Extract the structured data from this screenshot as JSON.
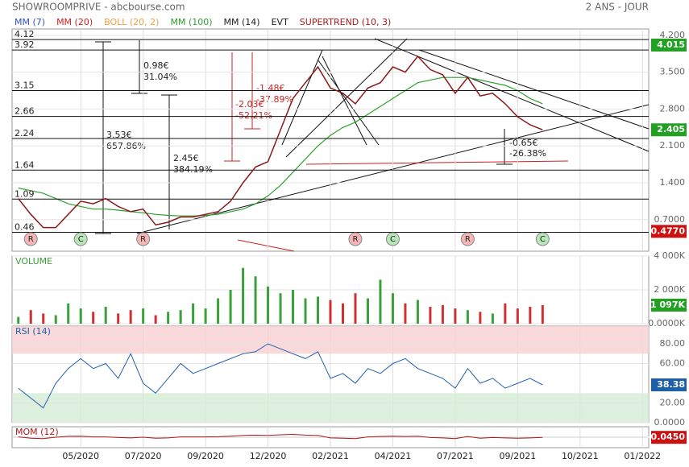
{
  "chart_data": [
    {
      "type": "line",
      "title": "SHOWROOMPRIVE - abcbourse.com",
      "subtitle": "2 ANS - JOUR",
      "indicators": [
        {
          "name": "MM (7)",
          "color": "#3050c8"
        },
        {
          "name": "MM (20)",
          "color": "#d02020"
        },
        {
          "name": "BOLL (20, 2)",
          "color": "#f0a040"
        },
        {
          "name": "MM (100)",
          "color": "#2ca02c",
          "values": [
            1.3,
            1.25,
            1.2,
            1.1,
            1.0,
            0.95,
            0.9,
            0.9,
            0.88,
            0.85,
            0.83,
            0.8,
            0.78,
            0.77,
            0.77,
            0.78,
            0.8,
            0.85,
            0.9,
            1.0,
            1.15,
            1.35,
            1.6,
            1.85,
            2.1,
            2.3,
            2.45,
            2.55,
            2.7,
            2.85,
            3.0,
            3.15,
            3.3,
            3.35,
            3.4,
            3.4,
            3.4,
            3.35,
            3.3,
            3.25,
            3.15,
            3.0,
            2.9,
            null,
            null,
            null,
            null,
            null,
            null,
            null,
            null
          ]
        },
        {
          "name": "MM (14)",
          "color": "#222222"
        },
        {
          "name": "EVT",
          "color": "#222222"
        },
        {
          "name": "SUPERTREND (10, 3)",
          "color": "#b01818"
        }
      ],
      "categories": [
        null,
        null,
        null,
        null,
        null,
        "05/2020",
        null,
        null,
        null,
        null,
        "07/2020",
        null,
        null,
        null,
        null,
        "09/2020",
        null,
        null,
        null,
        null,
        "12/2020",
        null,
        null,
        null,
        null,
        "02/2021",
        null,
        null,
        null,
        null,
        "04/2021",
        null,
        null,
        null,
        null,
        "07/2021",
        null,
        null,
        null,
        null,
        "09/2021",
        null,
        null,
        null,
        null,
        "10/2021",
        null,
        null,
        null,
        null,
        "01/2022"
      ],
      "values": [
        1.1,
        0.8,
        0.55,
        0.55,
        0.8,
        1.05,
        1.0,
        1.1,
        0.95,
        0.85,
        0.9,
        0.6,
        0.65,
        0.75,
        0.75,
        0.8,
        0.85,
        1.05,
        1.4,
        1.7,
        1.8,
        2.4,
        3.0,
        3.3,
        3.6,
        3.2,
        3.1,
        2.9,
        3.2,
        3.3,
        3.6,
        3.5,
        3.8,
        3.55,
        3.45,
        3.1,
        3.4,
        3.05,
        3.1,
        2.9,
        2.65,
        2.5,
        2.405,
        null,
        null,
        null,
        null,
        null,
        null,
        null,
        null
      ],
      "color": "#8b1a1a",
      "ylim": [
        0.1,
        4.32
      ],
      "yticks": [
        {
          "value": 4.2,
          "label": "4.200"
        },
        {
          "value": 3.5,
          "label": "3.500"
        },
        {
          "value": 2.8,
          "label": "2.800"
        },
        {
          "value": 2.1,
          "label": "2.100"
        },
        {
          "value": 1.4,
          "label": "1.400"
        },
        {
          "value": 0.7,
          "label": "0.7000"
        }
      ],
      "levels": [
        4.12,
        3.92,
        3.15,
        2.66,
        2.24,
        1.64,
        1.09,
        0.46
      ],
      "price_tags": [
        {
          "value": 4.015,
          "color": "#22a022"
        },
        {
          "value": 2.405,
          "color": "#22a022"
        },
        {
          "value": 0.477,
          "label": "0.4770",
          "color": "#cc1111"
        }
      ],
      "signals": [
        null,
        "R",
        null,
        null,
        null,
        "C",
        null,
        null,
        null,
        null,
        "R",
        null,
        null,
        null,
        null,
        null,
        null,
        null,
        null,
        null,
        null,
        null,
        null,
        null,
        null,
        null,
        null,
        "R",
        null,
        null,
        "C",
        null,
        null,
        null,
        null,
        null,
        "R",
        null,
        null,
        null,
        null,
        null,
        "C",
        null,
        null,
        null,
        null,
        null,
        null,
        null,
        null
      ],
      "signal_colors": {
        "R": "#f4b6b6",
        "C": "#b8e6b8"
      },
      "annotations": [
        {
          "amount": "0.98€",
          "percent": "31.04%"
        },
        {
          "amount": "3.53€",
          "percent": "657.86%"
        },
        {
          "amount": "2.45€",
          "percent": "384.19%"
        },
        {
          "amount": "-1.48€",
          "percent": "-37.89%"
        },
        {
          "amount": "-2.03€",
          "percent": "-52.21%"
        },
        {
          "amount": "-0.65€",
          "percent": "-26.38%"
        }
      ],
      "grid": true
    },
    {
      "type": "bar",
      "title": "VOLUME",
      "values": [
        400,
        800,
        600,
        500,
        1200,
        900,
        700,
        1000,
        600,
        800,
        900,
        500,
        700,
        800,
        1200,
        900,
        1500,
        2000,
        3300,
        2800,
        2200,
        1800,
        2000,
        1500,
        1600,
        1400,
        1200,
        1800,
        1500,
        2600,
        1800,
        1200,
        1400,
        1000,
        1100,
        900,
        800,
        700,
        600,
        1200,
        900,
        1000,
        1097,
        null,
        null,
        null,
        null,
        null,
        null,
        null,
        null
      ],
      "up_color": "#3aa03a",
      "down_color": "#d03030",
      "ylim": [
        0,
        4000
      ],
      "yticks": [
        {
          "value": 4000,
          "label": "4 000K"
        },
        {
          "value": 2000,
          "label": "2 000K"
        },
        {
          "value": 0,
          "label": "0.0000K"
        }
      ],
      "last_tag": {
        "value": 1097,
        "label": "1 097K",
        "color": "#22a022"
      }
    },
    {
      "type": "line",
      "title": "RSI (14)",
      "values": [
        35,
        25,
        15,
        40,
        55,
        65,
        55,
        60,
        45,
        70,
        40,
        30,
        45,
        60,
        50,
        55,
        60,
        65,
        70,
        72,
        80,
        75,
        70,
        65,
        72,
        45,
        50,
        40,
        55,
        50,
        60,
        65,
        55,
        50,
        45,
        35,
        55,
        40,
        45,
        35,
        40,
        45,
        38.38,
        null,
        null,
        null,
        null,
        null,
        null,
        null,
        null
      ],
      "color": "#2060b0",
      "ylim": [
        0,
        98
      ],
      "yticks": [
        {
          "value": 80,
          "label": "80.00"
        },
        {
          "value": 60,
          "label": "60.00"
        },
        {
          "value": 20,
          "label": "20.00"
        },
        {
          "value": 0,
          "label": "0.0000"
        }
      ],
      "zones": {
        "overbought": 70,
        "oversold": 30
      },
      "last_tag": {
        "value": 38.38,
        "color": "#1f5fa8"
      }
    },
    {
      "type": "line",
      "title": "MOM (12)",
      "values": [
        0.1,
        -0.3,
        -0.4,
        0,
        0.25,
        0.3,
        0.1,
        0.1,
        -0.1,
        -0.2,
        0,
        -0.3,
        -0.2,
        0.1,
        0.1,
        0.1,
        0.15,
        0.3,
        0.5,
        0.6,
        0.5,
        0.7,
        0.8,
        0.6,
        0.5,
        -0.2,
        -0.3,
        -0.4,
        0.1,
        0.2,
        0.3,
        0.2,
        0.3,
        -0.1,
        -0.2,
        -0.4,
        0.2,
        -0.3,
        -0.1,
        -0.2,
        -0.3,
        -0.2,
        -0.045,
        null,
        null,
        null,
        null,
        null,
        null,
        null,
        null
      ],
      "color": "#b01818",
      "ylim": [
        -3,
        3
      ],
      "last_tag": {
        "value": -0.045,
        "label": "-0.0450",
        "color": "#cc1111"
      }
    }
  ]
}
